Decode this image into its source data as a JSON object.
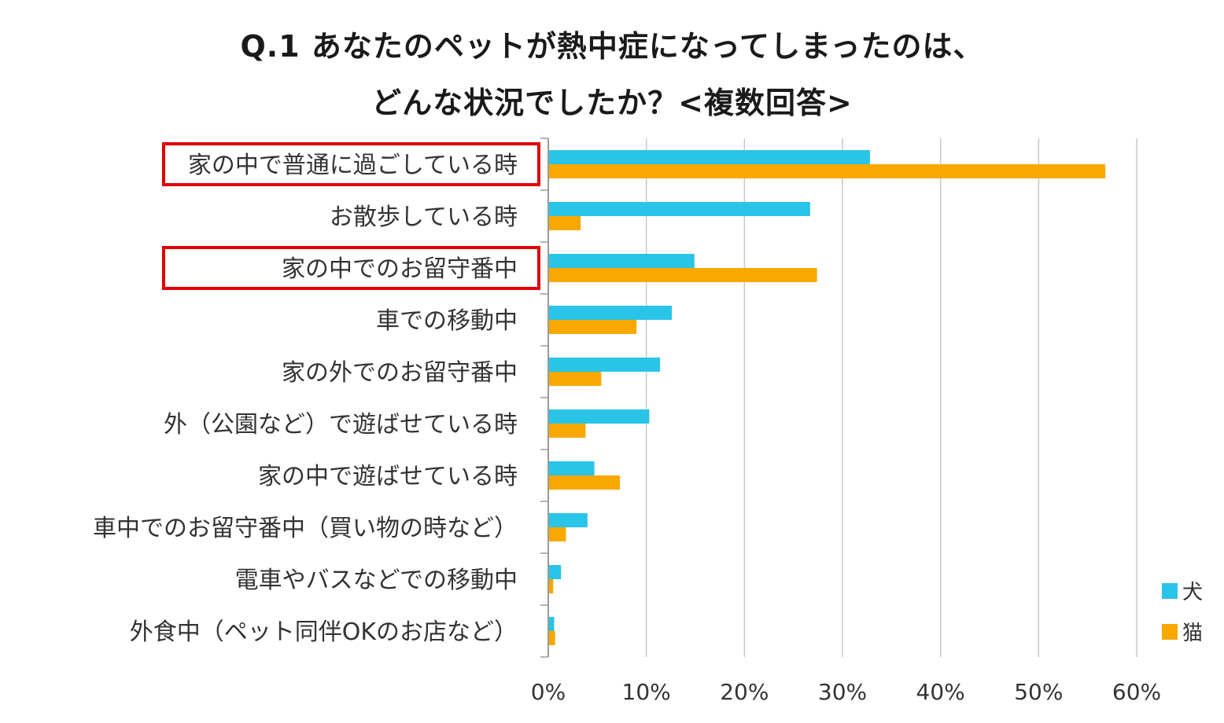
{
  "title": {
    "line1": "Q.1 あなたのペットが熱中症になってしまったのは、",
    "line2": "どんな状況でしたか？<複数回答>"
  },
  "chart_data": {
    "type": "bar",
    "orientation": "horizontal",
    "categories": [
      "家の中で普通に過ごしている時",
      "お散歩している時",
      "家の中でのお留守番中",
      "車での移動中",
      "家の外でのお留守番中",
      "外（公園など）で遊ばせている時",
      "家の中で遊ばせている時",
      "車中でのお留守番中（買い物の時など）",
      "電車やバスなどでの移動中",
      "外食中（ペット同伴OKのお店など）"
    ],
    "series": [
      {
        "name": "犬",
        "color": "#29C4E8",
        "values": [
          32.8,
          26.7,
          14.9,
          12.6,
          11.4,
          10.3,
          4.7,
          4.0,
          1.3,
          0.6
        ]
      },
      {
        "name": "猫",
        "color": "#F9A800",
        "values": [
          56.8,
          3.3,
          27.4,
          9.0,
          5.4,
          3.8,
          7.3,
          1.8,
          0.5,
          0.7
        ]
      }
    ],
    "xlim": [
      0,
      60
    ],
    "xticks": [
      "0%",
      "10%",
      "20%",
      "30%",
      "40%",
      "50%",
      "60%"
    ],
    "grid": true,
    "legend_position": "bottom-right",
    "highlighted_categories": [
      0,
      2
    ],
    "highlight_color": "#E00000"
  }
}
